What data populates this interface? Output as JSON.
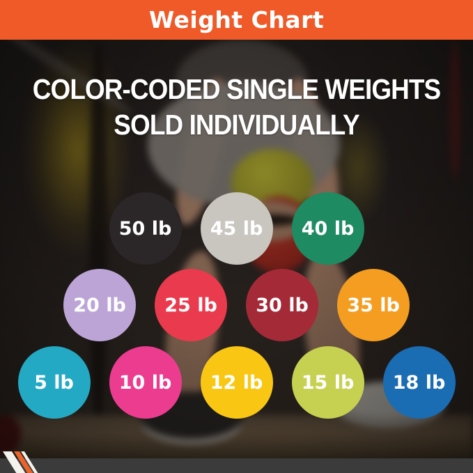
{
  "header": {
    "title": "Weight Chart",
    "bg_color": "#EF5A28",
    "text_color": "#FFFFFF"
  },
  "headline": {
    "line1": "COLOR-CODED SINGLE WEIGHTS",
    "line2": "SOLD INDIVIDUALLY"
  },
  "chart_data": {
    "type": "table",
    "title": "Weight Chart",
    "description": "Color-coded single weights sold individually",
    "unit": "lb",
    "rows": [
      [
        {
          "label": "50 lb",
          "value_lb": 50,
          "color": "#2B2627"
        },
        {
          "label": "45 lb",
          "value_lb": 45,
          "color": "#C9C6C0"
        },
        {
          "label": "40 lb",
          "value_lb": 40,
          "color": "#1E8B62"
        }
      ],
      [
        {
          "label": "20 lb",
          "value_lb": 20,
          "color": "#BCA5D6"
        },
        {
          "label": "25 lb",
          "value_lb": 25,
          "color": "#EA3A4D"
        },
        {
          "label": "30 lb",
          "value_lb": 30,
          "color": "#A52A38"
        },
        {
          "label": "35 lb",
          "value_lb": 35,
          "color": "#F59D20"
        }
      ],
      [
        {
          "label": "5 lb",
          "value_lb": 5,
          "color": "#24A9C4"
        },
        {
          "label": "10 lb",
          "value_lb": 10,
          "color": "#EC3C90"
        },
        {
          "label": "12 lb",
          "value_lb": 12,
          "color": "#F9C713"
        },
        {
          "label": "15 lb",
          "value_lb": 15,
          "color": "#C6D152"
        },
        {
          "label": "18 lb",
          "value_lb": 18,
          "color": "#1A6CB3"
        }
      ]
    ]
  },
  "footer": {
    "bar_color": "#3B3B3B",
    "stripe_colors": [
      "#F4F2ED",
      "#EA632B",
      "#F4F2ED"
    ]
  }
}
